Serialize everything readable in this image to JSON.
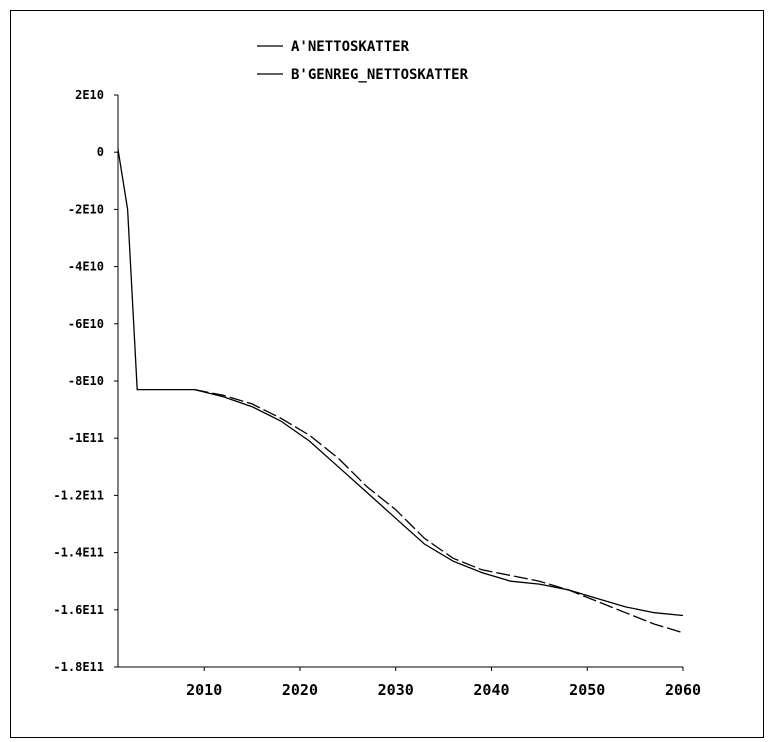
{
  "chart_data": {
    "type": "line",
    "title": "",
    "xlabel": "",
    "ylabel": "",
    "xlim": [
      2001,
      2060
    ],
    "ylim": [
      -180000000000.0,
      20000000000.0
    ],
    "grid": false,
    "legend_position": "top-center",
    "x_ticks": [
      2010,
      2020,
      2030,
      2040,
      2050,
      2060
    ],
    "x_tick_labels": [
      "2010",
      "2020",
      "2030",
      "2040",
      "2050",
      "2060"
    ],
    "y_ticks": [
      20000000000.0,
      0,
      -20000000000.0,
      -40000000000.0,
      -60000000000.0,
      -80000000000.0,
      -100000000000.0,
      -120000000000.0,
      -140000000000.0,
      -160000000000.0,
      -180000000000.0
    ],
    "y_tick_labels": [
      "2E10",
      "0",
      "-2E10",
      "-4E10",
      "-6E10",
      "-8E10",
      "-1E11",
      "-1.2E11",
      "-1.4E11",
      "-1.6E11",
      "-1.8E11"
    ],
    "series": [
      {
        "name": "A'NETTOSKATTER",
        "color": "#000000",
        "dashed": false,
        "x": [
          2001,
          2002,
          2003,
          2006,
          2009,
          2012,
          2015,
          2018,
          2021,
          2024,
          2027,
          2030,
          2033,
          2036,
          2039,
          2042,
          2045,
          2048,
          2051,
          2054,
          2057,
          2060
        ],
        "y": [
          1000000000.0,
          -20000000000.0,
          -83000000000.0,
          -83000000000.0,
          -83000000000.0,
          -85500000000.0,
          -89000000000.0,
          -94000000000.0,
          -101000000000.0,
          -110000000000.0,
          -119000000000.0,
          -128000000000.0,
          -137000000000.0,
          -143000000000.0,
          -147000000000.0,
          -150000000000.0,
          -151000000000.0,
          -153000000000.0,
          -156000000000.0,
          -159000000000.0,
          -161000000000.0,
          -162000000000.0
        ]
      },
      {
        "name": "B'GENREG_NETTOSKATTER",
        "color": "#000000",
        "dashed": true,
        "x": [
          2009,
          2012,
          2015,
          2018,
          2021,
          2024,
          2027,
          2030,
          2033,
          2036,
          2039,
          2042,
          2045,
          2048,
          2051,
          2054,
          2057,
          2060
        ],
        "y": [
          -83000000000.0,
          -85000000000.0,
          -88000000000.0,
          -93000000000.0,
          -99000000000.0,
          -107000000000.0,
          -117000000000.0,
          -125000000000.0,
          -135000000000.0,
          -142000000000.0,
          -146000000000.0,
          -148000000000.0,
          -150000000000.0,
          -153000000000.0,
          -157000000000.0,
          -161000000000.0,
          -165000000000.0,
          -168000000000.0
        ]
      }
    ]
  }
}
